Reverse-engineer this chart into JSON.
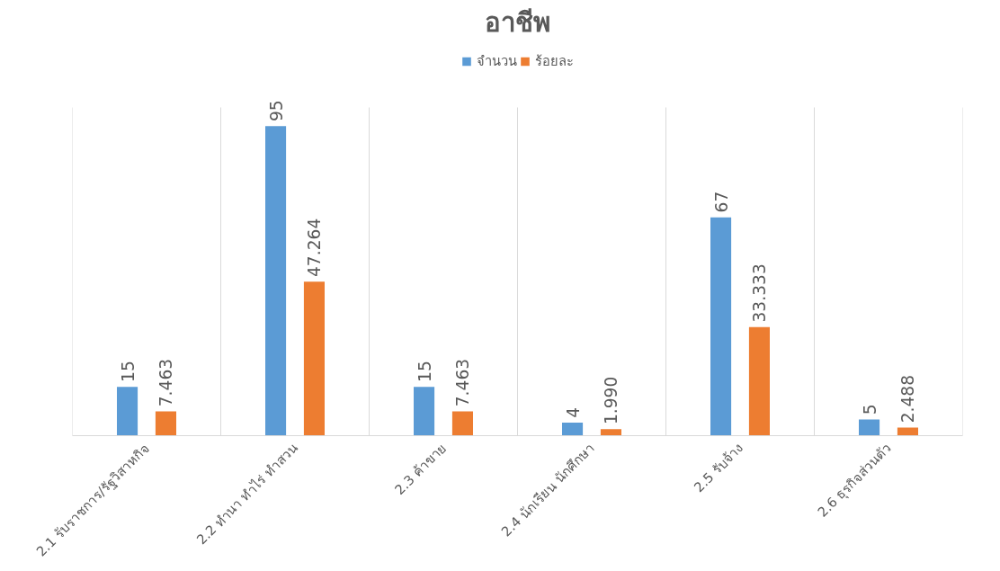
{
  "chart_data": {
    "type": "bar",
    "title": "อาชีพ",
    "categories": [
      "2.1 รับราชการ/รัฐวิสาหกิจ",
      "2.2 ทำนา ทำไร่ ทำสวน",
      "2.3 ค้าขาย",
      "2.4 นักเรียน นักศึกษา",
      "2.5 รับจ้าง",
      "2.6 ธุรกิจส่วนตัว"
    ],
    "series": [
      {
        "name": "จำนวน",
        "color": "#5b9bd5",
        "values": [
          15,
          95,
          15,
          4,
          67,
          5
        ],
        "value_labels": [
          "15",
          "95",
          "15",
          "4",
          "67",
          "5"
        ]
      },
      {
        "name": "ร้อยละ",
        "color": "#ed7d31",
        "values": [
          7.463,
          47.264,
          7.463,
          1.99,
          33.333,
          2.488
        ],
        "value_labels": [
          "7.463",
          "47.264",
          "7.463",
          "1.990",
          "33.333",
          "2.488"
        ]
      }
    ],
    "legend": "top",
    "grid": "x",
    "tick_labels": "x"
  }
}
